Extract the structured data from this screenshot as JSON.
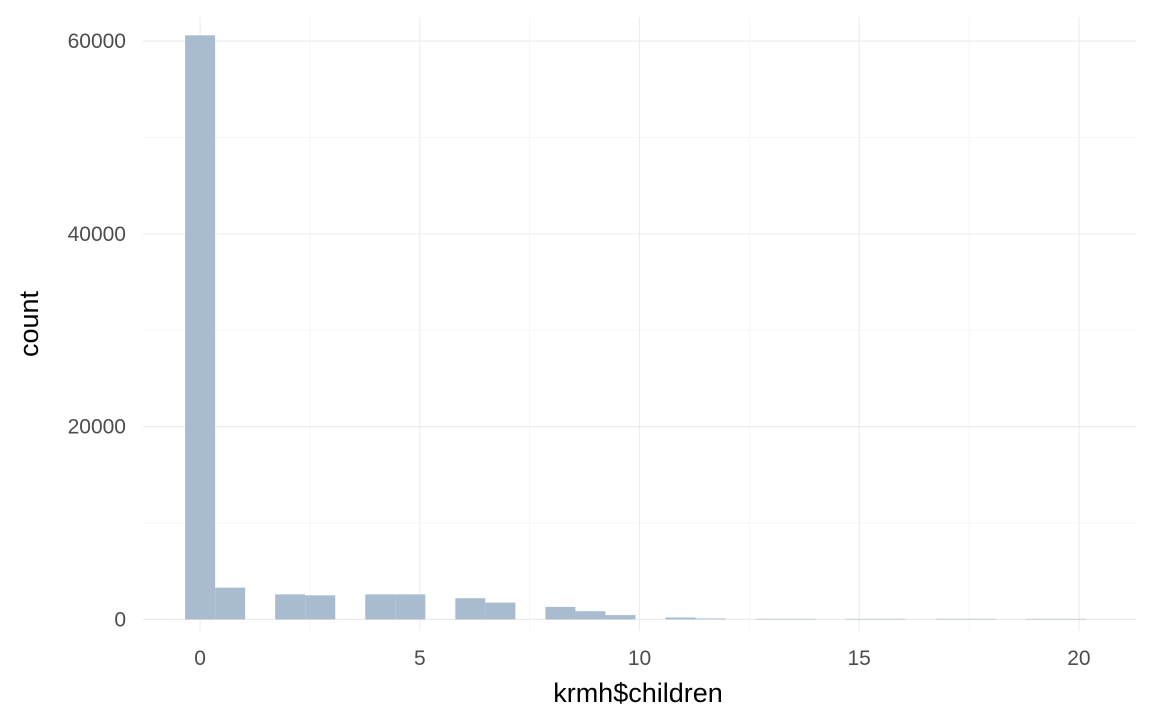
{
  "chart_data": {
    "type": "bar",
    "subtype": "histogram",
    "title": "",
    "xlabel": "krmh$children",
    "ylabel": "count",
    "xlim": [
      -1.3,
      21.3
    ],
    "ylim": [
      -1200,
      62500
    ],
    "x_ticks": [
      0,
      5,
      10,
      15,
      20
    ],
    "y_ticks": [
      0,
      20000,
      40000,
      60000
    ],
    "bin_width": 0.6833,
    "bins": [
      {
        "x0": -0.3417,
        "x1": 0.3417,
        "count": 60600
      },
      {
        "x0": 0.3417,
        "x1": 1.025,
        "count": 3300
      },
      {
        "x0": 1.025,
        "x1": 1.7083,
        "count": 0
      },
      {
        "x0": 1.7083,
        "x1": 2.3917,
        "count": 2600
      },
      {
        "x0": 2.3917,
        "x1": 3.075,
        "count": 2500
      },
      {
        "x0": 3.075,
        "x1": 3.7583,
        "count": 0
      },
      {
        "x0": 3.7583,
        "x1": 4.4417,
        "count": 2600
      },
      {
        "x0": 4.4417,
        "x1": 5.125,
        "count": 2600
      },
      {
        "x0": 5.125,
        "x1": 5.8083,
        "count": 0
      },
      {
        "x0": 5.8083,
        "x1": 6.4917,
        "count": 2200
      },
      {
        "x0": 6.4917,
        "x1": 7.175,
        "count": 1750
      },
      {
        "x0": 7.175,
        "x1": 7.8583,
        "count": 0
      },
      {
        "x0": 7.8583,
        "x1": 8.5417,
        "count": 1300
      },
      {
        "x0": 8.5417,
        "x1": 9.225,
        "count": 850
      },
      {
        "x0": 9.225,
        "x1": 9.9083,
        "count": 450
      },
      {
        "x0": 9.9083,
        "x1": 10.5917,
        "count": 0
      },
      {
        "x0": 10.5917,
        "x1": 11.275,
        "count": 200
      },
      {
        "x0": 11.275,
        "x1": 11.9583,
        "count": 100
      },
      {
        "x0": 11.9583,
        "x1": 12.6417,
        "count": 0
      },
      {
        "x0": 12.6417,
        "x1": 13.325,
        "count": 60
      },
      {
        "x0": 13.325,
        "x1": 14.0083,
        "count": 40
      },
      {
        "x0": 14.0083,
        "x1": 14.6917,
        "count": 0
      },
      {
        "x0": 14.6917,
        "x1": 15.375,
        "count": 10
      },
      {
        "x0": 15.375,
        "x1": 16.0583,
        "count": 5
      },
      {
        "x0": 16.0583,
        "x1": 16.7417,
        "count": 0
      },
      {
        "x0": 16.7417,
        "x1": 17.425,
        "count": 3
      },
      {
        "x0": 17.425,
        "x1": 18.1083,
        "count": 2
      },
      {
        "x0": 18.1083,
        "x1": 18.7917,
        "count": 0
      },
      {
        "x0": 18.7917,
        "x1": 19.475,
        "count": 1
      },
      {
        "x0": 19.475,
        "x1": 20.1583,
        "count": 1
      }
    ],
    "bar_color": "#a9bccf",
    "grid": true,
    "legend": "none"
  }
}
